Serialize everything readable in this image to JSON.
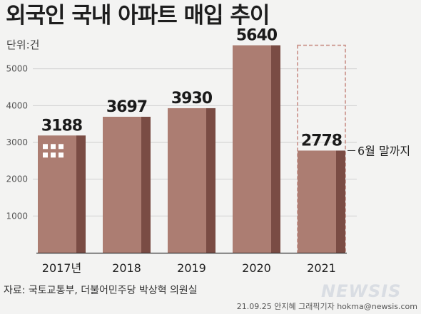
{
  "header": {
    "title": "외국인 국내 아파트 매입 추이",
    "unit": "단위:건"
  },
  "chart_data": {
    "type": "bar",
    "categories": [
      "2017년",
      "2018",
      "2019",
      "2020",
      "2021"
    ],
    "values": [
      3188,
      3697,
      3930,
      5640,
      2778
    ],
    "value_labels": [
      "3188",
      "3697",
      "3930",
      "5640",
      "2778"
    ],
    "ylim": [
      0,
      6000
    ],
    "yticks": [
      1000,
      2000,
      3000,
      4000,
      5000
    ],
    "ytick_labels": [
      "1000",
      "2000",
      "3000",
      "4000",
      "5000"
    ],
    "grid": true,
    "partial_year_note": "6월 말까지",
    "colors": {
      "bar_front": "#ac7d72",
      "bar_side": "#7a4c44",
      "dashed_outline": "#c98f86",
      "grid": "#cfcfcf",
      "window": "#ffffff"
    }
  },
  "footer": {
    "source": "자료: 국토교통부, 더불어민주당 박상혁 의원실",
    "credit": "21.09.25 안지혜 그래픽기자 hokma@newsis.com",
    "logo": "NEWSIS"
  }
}
